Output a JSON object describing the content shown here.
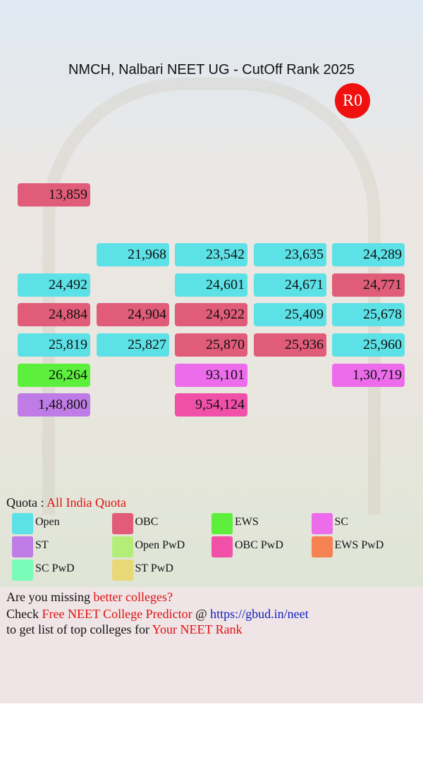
{
  "header": {
    "title": "NMCH, Nalbari NEET UG - CutOff Rank 2025",
    "badge": "R0"
  },
  "grid": [
    [
      {
        "rank": "13,859",
        "quota": "OBC"
      },
      null,
      null,
      null,
      null
    ],
    [
      null,
      {
        "rank": "21,968",
        "quota": "Open"
      },
      {
        "rank": "23,542",
        "quota": "Open"
      },
      {
        "rank": "23,635",
        "quota": "Open"
      },
      {
        "rank": "24,289",
        "quota": "Open"
      }
    ],
    [
      {
        "rank": "24,492",
        "quota": "Open"
      },
      null,
      {
        "rank": "24,601",
        "quota": "Open"
      },
      {
        "rank": "24,671",
        "quota": "Open"
      },
      {
        "rank": "24,771",
        "quota": "OBC"
      }
    ],
    [
      {
        "rank": "24,884",
        "quota": "OBC"
      },
      {
        "rank": "24,904",
        "quota": "OBC"
      },
      {
        "rank": "24,922",
        "quota": "OBC"
      },
      {
        "rank": "25,409",
        "quota": "Open"
      },
      {
        "rank": "25,678",
        "quota": "Open"
      }
    ],
    [
      {
        "rank": "25,819",
        "quota": "Open"
      },
      {
        "rank": "25,827",
        "quota": "Open"
      },
      {
        "rank": "25,870",
        "quota": "OBC"
      },
      {
        "rank": "25,936",
        "quota": "OBC"
      },
      {
        "rank": "25,960",
        "quota": "Open"
      }
    ],
    [
      {
        "rank": "26,264",
        "quota": "EWS"
      },
      null,
      {
        "rank": "93,101",
        "quota": "SC"
      },
      null,
      {
        "rank": "1,30,719",
        "quota": "SC"
      }
    ],
    [
      {
        "rank": "1,48,800",
        "quota": "ST"
      },
      null,
      {
        "rank": "9,54,124",
        "quota": "OBC PwD"
      },
      null,
      null
    ]
  ],
  "quota_line": {
    "label": "Quota : ",
    "value": "All India Quota"
  },
  "legend": [
    {
      "name": "Open",
      "color": "#5ce1e6"
    },
    {
      "name": "OBC",
      "color": "#e05c78"
    },
    {
      "name": "EWS",
      "color": "#5cf03c"
    },
    {
      "name": "SC",
      "color": "#ec6cec"
    },
    {
      "name": "ST",
      "color": "#c07ce6"
    },
    {
      "name": "Open PwD",
      "color": "#b4ee78"
    },
    {
      "name": "OBC PwD",
      "color": "#f050a8"
    },
    {
      "name": "EWS PwD",
      "color": "#f58250"
    },
    {
      "name": "SC PwD",
      "color": "#78fcb8"
    },
    {
      "name": "ST PwD",
      "color": "#e8d878"
    }
  ],
  "promo": {
    "line1": [
      "Are you missing ",
      "better colleges?"
    ],
    "line2": [
      "Check ",
      "Free NEET College Predictor",
      " @ ",
      "https://gbud.in/neet"
    ],
    "line3": [
      "to get list of top colleges for ",
      "Your NEET Rank"
    ]
  }
}
